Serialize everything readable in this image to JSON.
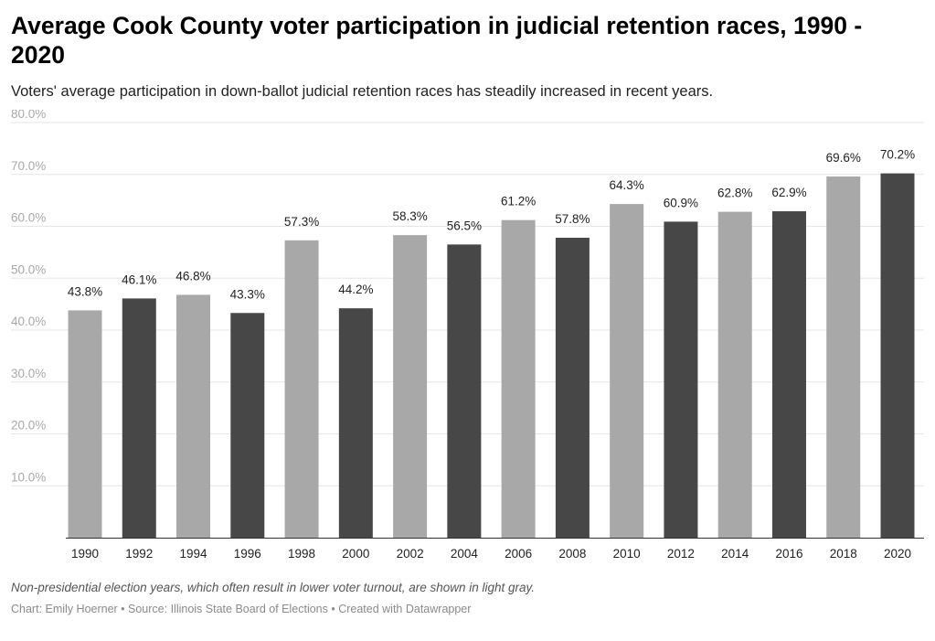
{
  "title": "Average Cook County voter participation in judicial retention races, 1990 - 2020",
  "subtitle": "Voters' average participation in down-ballot judicial retention races has steadily increased in recent years.",
  "note": "Non-presidential election years, which often result in lower voter turnout, are shown in light gray.",
  "footer": "Chart: Emily Hoerner • Source: Illinois State Board of Elections • Created with Datawrapper",
  "colors": {
    "light_bar": "#a8a8a8",
    "dark_bar": "#474747",
    "gridline": "#e6e6e6",
    "baseline": "#333333"
  },
  "chart_data": {
    "type": "bar",
    "title": "Average Cook County voter participation in judicial retention races, 1990 - 2020",
    "categories": [
      "1990",
      "1992",
      "1994",
      "1996",
      "1998",
      "2000",
      "2002",
      "2004",
      "2006",
      "2008",
      "2010",
      "2012",
      "2014",
      "2016",
      "2018",
      "2020"
    ],
    "values": [
      43.8,
      46.1,
      46.8,
      43.3,
      57.3,
      44.2,
      58.3,
      56.5,
      61.2,
      57.8,
      64.3,
      60.9,
      62.8,
      62.9,
      69.6,
      70.2
    ],
    "value_labels": [
      "43.8%",
      "46.1%",
      "46.8%",
      "43.3%",
      "57.3%",
      "44.2%",
      "58.3%",
      "56.5%",
      "61.2%",
      "57.8%",
      "64.3%",
      "60.9%",
      "62.8%",
      "62.9%",
      "69.6%",
      "70.2%"
    ],
    "bar_shade": [
      "light",
      "dark",
      "light",
      "dark",
      "light",
      "dark",
      "light",
      "dark",
      "light",
      "dark",
      "light",
      "dark",
      "light",
      "dark",
      "light",
      "dark"
    ],
    "ylim": [
      0,
      80
    ],
    "yticks": [
      10,
      20,
      30,
      40,
      50,
      60,
      70,
      80
    ],
    "ytick_labels": [
      "10.0%",
      "20.0%",
      "30.0%",
      "40.0%",
      "50.0%",
      "60.0%",
      "70.0%",
      "80.0%"
    ],
    "xlabel": "",
    "ylabel": "",
    "grid": true
  }
}
